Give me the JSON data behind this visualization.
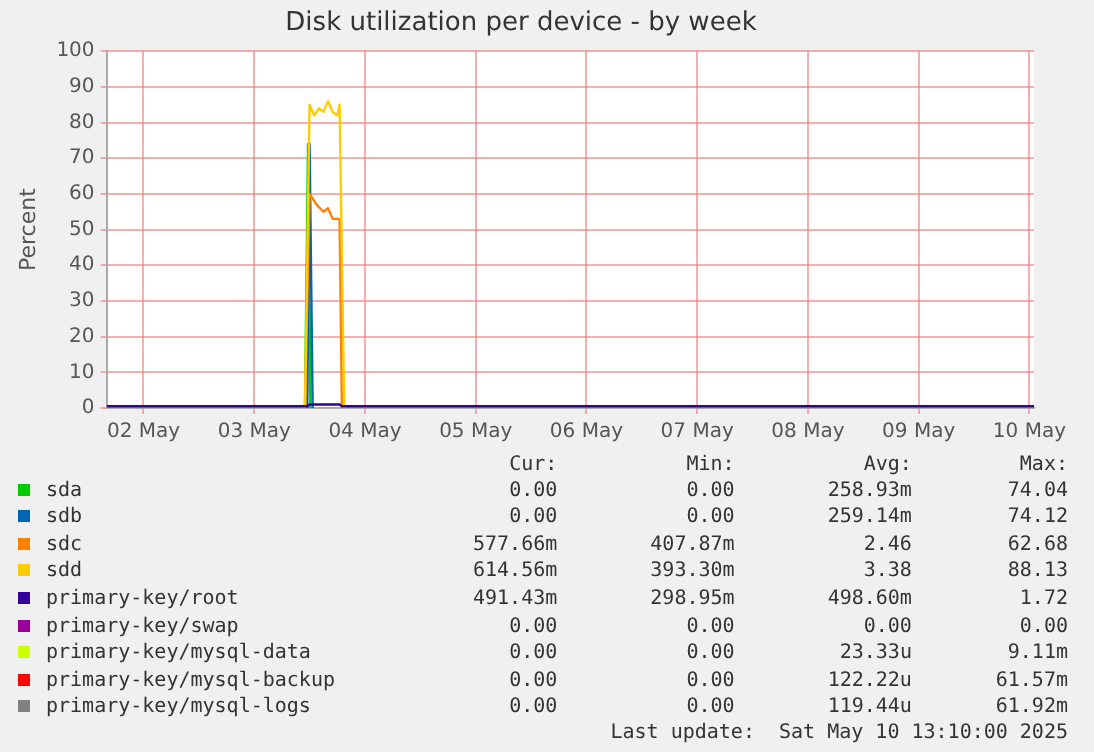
{
  "chart_data": {
    "type": "line",
    "title": "Disk utilization per device - by week",
    "ylabel": "Percent",
    "ylim": [
      0,
      100
    ],
    "yticks": [
      0,
      10,
      20,
      30,
      40,
      50,
      60,
      70,
      80,
      90,
      100
    ],
    "xlim": [
      "2025-05-01T16:00",
      "2025-05-10T01:00"
    ],
    "xticks": [
      {
        "value": "2025-05-02",
        "label": "02 May"
      },
      {
        "value": "2025-05-03",
        "label": "03 May"
      },
      {
        "value": "2025-05-04",
        "label": "04 May"
      },
      {
        "value": "2025-05-05",
        "label": "05 May"
      },
      {
        "value": "2025-05-06",
        "label": "06 May"
      },
      {
        "value": "2025-05-07",
        "label": "07 May"
      },
      {
        "value": "2025-05-08",
        "label": "08 May"
      },
      {
        "value": "2025-05-09",
        "label": "09 May"
      },
      {
        "value": "2025-05-10",
        "label": "10 May"
      }
    ],
    "grid": true,
    "legend": "bottom",
    "marker": "none",
    "line_style": "solid",
    "series": [
      {
        "name": "sda",
        "color": "#00cc00",
        "x": [
          "2025-05-03T11:00",
          "2025-05-03T11:40",
          "2025-05-03T12:10"
        ],
        "values": [
          0,
          74,
          0
        ]
      },
      {
        "name": "sdb",
        "color": "#0066b3",
        "x": [
          "2025-05-03T11:30",
          "2025-05-03T12:00",
          "2025-05-03T12:40"
        ],
        "values": [
          0,
          74,
          0
        ]
      },
      {
        "name": "sdc",
        "color": "#ff8000",
        "x": [
          "2025-05-03T11:00",
          "2025-05-03T12:00",
          "2025-05-03T13:30",
          "2025-05-03T15:00",
          "2025-05-03T16:00",
          "2025-05-03T17:00",
          "2025-05-03T18:30",
          "2025-05-03T19:00"
        ],
        "values": [
          0,
          60,
          57,
          55,
          56,
          53,
          53,
          0
        ]
      },
      {
        "name": "sdd",
        "color": "#ffcc00",
        "x": [
          "2025-05-03T11:00",
          "2025-05-03T12:00",
          "2025-05-03T13:00",
          "2025-05-03T14:00",
          "2025-05-03T15:00",
          "2025-05-03T16:00",
          "2025-05-03T17:00",
          "2025-05-03T18:00",
          "2025-05-03T18:30",
          "2025-05-03T19:30"
        ],
        "values": [
          0,
          85,
          82,
          84,
          83,
          86,
          83,
          82,
          85,
          0
        ]
      },
      {
        "name": "primary-key/root",
        "color": "#330099",
        "x": [
          "2025-05-01T16:00",
          "2025-05-03T11:30",
          "2025-05-03T12:00",
          "2025-05-03T18:30",
          "2025-05-03T19:00",
          "2025-05-10T01:00"
        ],
        "values": [
          0.5,
          0.5,
          1,
          1,
          0.5,
          0.5
        ]
      },
      {
        "name": "primary-key/swap",
        "color": "#990099"
      },
      {
        "name": "primary-key/mysql-data",
        "color": "#ccff00"
      },
      {
        "name": "primary-key/mysql-backup",
        "color": "#ff0000"
      },
      {
        "name": "primary-key/mysql-logs",
        "color": "#808080"
      }
    ],
    "annotations": [
      "Cur:",
      "Min:",
      "Avg:",
      "Max:",
      "0.00",
      "0.00",
      "258.93m",
      "74.04",
      "0.00",
      "0.00",
      "259.14m",
      "74.12",
      "577.66m",
      "407.87m",
      "2.46",
      "62.68",
      "614.56m",
      "393.30m",
      "3.38",
      "88.13",
      "491.43m",
      "298.95m",
      "498.60m",
      "1.72",
      "0.00",
      "0.00",
      "0.00",
      "0.00",
      "0.00",
      "0.00",
      "23.33u",
      "9.11m",
      "0.00",
      "0.00",
      "122.22u",
      "61.57m",
      "0.00",
      "0.00",
      "119.44u",
      "61.92m",
      "Last update:  Sat May 10 13:10:00 2025"
    ]
  }
}
